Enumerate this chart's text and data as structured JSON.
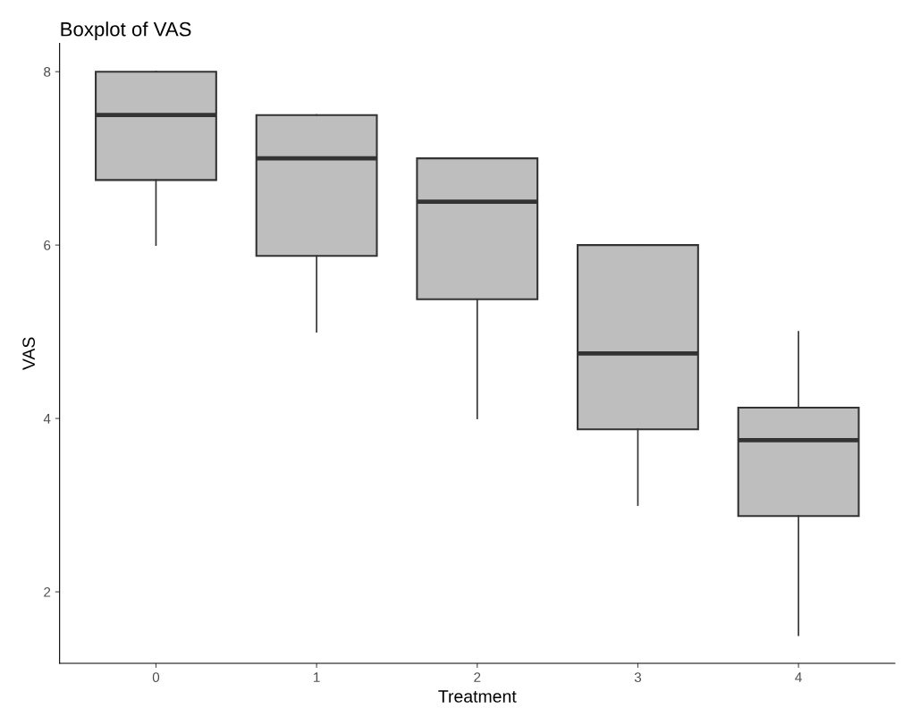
{
  "chart_data": {
    "type": "box",
    "title": "Boxplot of VAS",
    "xlabel": "Treatment",
    "ylabel": "VAS",
    "categories": [
      "0",
      "1",
      "2",
      "3",
      "4"
    ],
    "boxes": [
      {
        "low": 6,
        "q1": 6.75,
        "median": 7.5,
        "q3": 8,
        "high": 8
      },
      {
        "low": 5,
        "q1": 5.875,
        "median": 7,
        "q3": 7.5,
        "high": 7.5
      },
      {
        "low": 4,
        "q1": 5.375,
        "median": 6.5,
        "q3": 7,
        "high": 7
      },
      {
        "low": 3,
        "q1": 3.875,
        "median": 4.75,
        "q3": 6,
        "high": 6
      },
      {
        "low": 1.5,
        "q1": 2.875,
        "median": 3.75,
        "q3": 4.125,
        "high": 5
      }
    ],
    "color": "#bebebe",
    "ylim": [
      1.175,
      8.325
    ],
    "yticks": [
      2,
      4,
      6,
      8
    ],
    "grid": false,
    "legend": false
  }
}
